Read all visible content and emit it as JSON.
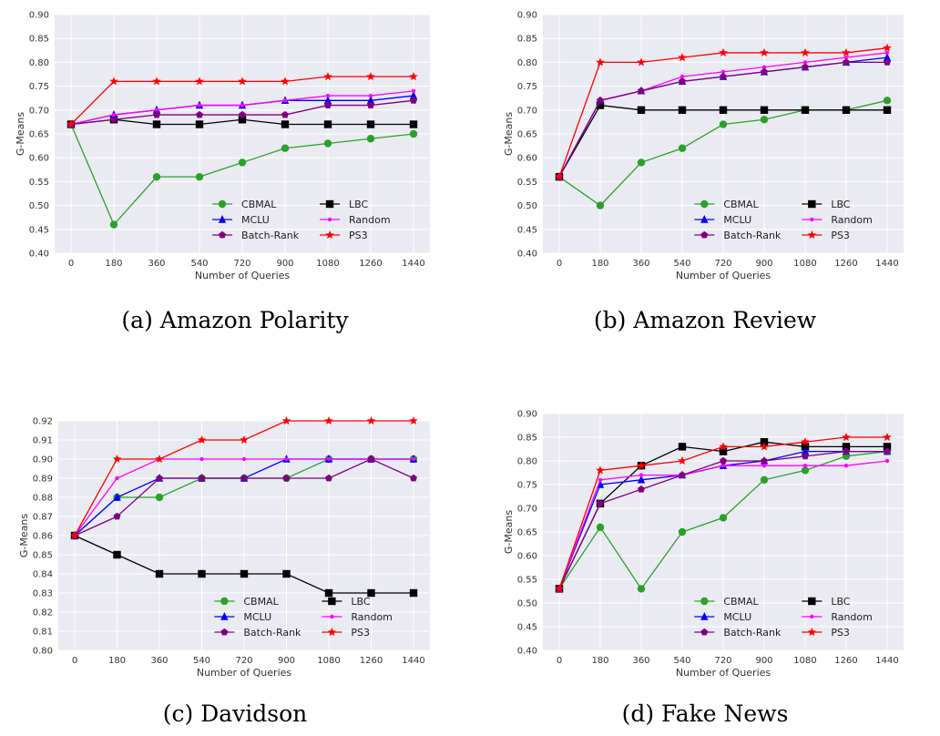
{
  "colors": {
    "CBMAL": "#2ca02c",
    "LBC": "#000000",
    "MCLU": "#0000ff",
    "Random": "#ff00ff",
    "Batch-Rank": "#800080",
    "PS3": "#ff0000",
    "plot_bg": "#eaeaf2",
    "grid": "#ffffff"
  },
  "chart_data": [
    {
      "type": "line",
      "caption": "(a) Amazon Polarity",
      "xlabel": "Number of Queries",
      "ylabel": "G-Means",
      "x": [
        0,
        180,
        360,
        540,
        720,
        900,
        1080,
        1260,
        1440
      ],
      "ylim": [
        0.4,
        0.9
      ],
      "yticks": [
        "0.40",
        "0.45",
        "0.50",
        "0.55",
        "0.60",
        "0.65",
        "0.70",
        "0.75",
        "0.80",
        "0.85",
        "0.90"
      ],
      "legend": "lower-right",
      "grid": true,
      "series": [
        {
          "name": "CBMAL",
          "marker": "circle",
          "values": [
            0.67,
            0.46,
            0.56,
            0.56,
            0.59,
            0.62,
            0.63,
            0.64,
            0.65
          ]
        },
        {
          "name": "MCLU",
          "marker": "triangle",
          "values": [
            0.67,
            0.69,
            0.7,
            0.71,
            0.71,
            0.72,
            0.72,
            0.72,
            0.73
          ]
        },
        {
          "name": "Batch-Rank",
          "marker": "pentagon",
          "values": [
            0.67,
            0.68,
            0.69,
            0.69,
            0.69,
            0.69,
            0.71,
            0.71,
            0.72
          ]
        },
        {
          "name": "LBC",
          "marker": "square",
          "values": [
            0.67,
            0.68,
            0.67,
            0.67,
            0.68,
            0.67,
            0.67,
            0.67,
            0.67
          ]
        },
        {
          "name": "Random",
          "marker": "dot",
          "values": [
            0.67,
            0.69,
            0.7,
            0.71,
            0.71,
            0.72,
            0.73,
            0.73,
            0.74
          ]
        },
        {
          "name": "PS3",
          "marker": "star",
          "values": [
            0.67,
            0.76,
            0.76,
            0.76,
            0.76,
            0.76,
            0.77,
            0.77,
            0.77
          ]
        }
      ]
    },
    {
      "type": "line",
      "caption": "(b) Amazon Review",
      "xlabel": "Number of Queries",
      "ylabel": "G-Means",
      "x": [
        0,
        180,
        360,
        540,
        720,
        900,
        1080,
        1260,
        1440
      ],
      "ylim": [
        0.4,
        0.9
      ],
      "yticks": [
        "0.40",
        "0.45",
        "0.50",
        "0.55",
        "0.60",
        "0.65",
        "0.70",
        "0.75",
        "0.80",
        "0.85",
        "0.90"
      ],
      "legend": "lower-right",
      "grid": true,
      "series": [
        {
          "name": "CBMAL",
          "marker": "circle",
          "values": [
            0.56,
            0.5,
            0.59,
            0.62,
            0.67,
            0.68,
            0.7,
            0.7,
            0.72
          ]
        },
        {
          "name": "MCLU",
          "marker": "triangle",
          "values": [
            0.56,
            0.72,
            0.74,
            0.76,
            0.77,
            0.78,
            0.79,
            0.8,
            0.81
          ]
        },
        {
          "name": "Batch-Rank",
          "marker": "pentagon",
          "values": [
            0.56,
            0.72,
            0.74,
            0.76,
            0.77,
            0.78,
            0.79,
            0.8,
            0.8
          ]
        },
        {
          "name": "LBC",
          "marker": "square",
          "values": [
            0.56,
            0.71,
            0.7,
            0.7,
            0.7,
            0.7,
            0.7,
            0.7,
            0.7
          ]
        },
        {
          "name": "Random",
          "marker": "dot",
          "values": [
            0.56,
            0.72,
            0.74,
            0.77,
            0.78,
            0.79,
            0.8,
            0.81,
            0.82
          ]
        },
        {
          "name": "PS3",
          "marker": "star",
          "values": [
            0.56,
            0.8,
            0.8,
            0.81,
            0.82,
            0.82,
            0.82,
            0.82,
            0.83
          ]
        }
      ]
    },
    {
      "type": "line",
      "caption": "(c) Davidson",
      "xlabel": "Number of Queries",
      "ylabel": "G-Means",
      "x": [
        0,
        180,
        360,
        540,
        720,
        900,
        1080,
        1260,
        1440
      ],
      "ylim": [
        0.8,
        0.92
      ],
      "yticks": [
        "0.80",
        "0.81",
        "0.82",
        "0.83",
        "0.84",
        "0.85",
        "0.86",
        "0.87",
        "0.88",
        "0.89",
        "0.90",
        "0.91",
        "0.92"
      ],
      "legend": "lower-right",
      "grid": true,
      "series": [
        {
          "name": "CBMAL",
          "marker": "circle",
          "values": [
            0.86,
            0.88,
            0.88,
            0.89,
            0.89,
            0.89,
            0.9,
            0.9,
            0.9
          ]
        },
        {
          "name": "MCLU",
          "marker": "triangle",
          "values": [
            0.86,
            0.88,
            0.89,
            0.89,
            0.89,
            0.9,
            0.9,
            0.9,
            0.9
          ]
        },
        {
          "name": "Batch-Rank",
          "marker": "pentagon",
          "values": [
            0.86,
            0.87,
            0.89,
            0.89,
            0.89,
            0.89,
            0.89,
            0.9,
            0.89
          ]
        },
        {
          "name": "LBC",
          "marker": "square",
          "values": [
            0.86,
            0.85,
            0.84,
            0.84,
            0.84,
            0.84,
            0.83,
            0.83,
            0.83
          ]
        },
        {
          "name": "Random",
          "marker": "dot",
          "values": [
            0.86,
            0.89,
            0.9,
            0.9,
            0.9,
            0.9,
            0.9,
            0.9,
            0.9
          ]
        },
        {
          "name": "PS3",
          "marker": "star",
          "values": [
            0.86,
            0.9,
            0.9,
            0.91,
            0.91,
            0.92,
            0.92,
            0.92,
            0.92
          ]
        }
      ]
    },
    {
      "type": "line",
      "caption": "(d) Fake News",
      "xlabel": "Number of Queries",
      "ylabel": "G-Means",
      "x": [
        0,
        180,
        360,
        540,
        720,
        900,
        1080,
        1260,
        1440
      ],
      "ylim": [
        0.4,
        0.9
      ],
      "yticks": [
        "0.40",
        "0.45",
        "0.50",
        "0.55",
        "0.60",
        "0.65",
        "0.70",
        "0.75",
        "0.80",
        "0.85",
        "0.90"
      ],
      "legend": "lower-right",
      "grid": true,
      "series": [
        {
          "name": "CBMAL",
          "marker": "circle",
          "values": [
            0.53,
            0.66,
            0.53,
            0.65,
            0.68,
            0.76,
            0.78,
            0.81,
            0.82
          ]
        },
        {
          "name": "MCLU",
          "marker": "triangle",
          "values": [
            0.53,
            0.75,
            0.76,
            0.77,
            0.79,
            0.8,
            0.82,
            0.82,
            0.82
          ]
        },
        {
          "name": "Batch-Rank",
          "marker": "pentagon",
          "values": [
            0.53,
            0.71,
            0.74,
            0.77,
            0.8,
            0.8,
            0.81,
            0.82,
            0.82
          ]
        },
        {
          "name": "LBC",
          "marker": "square",
          "values": [
            0.53,
            0.71,
            0.79,
            0.83,
            0.82,
            0.84,
            0.83,
            0.83,
            0.83
          ]
        },
        {
          "name": "Random",
          "marker": "dot",
          "values": [
            0.53,
            0.76,
            0.77,
            0.77,
            0.79,
            0.79,
            0.79,
            0.79,
            0.8
          ]
        },
        {
          "name": "PS3",
          "marker": "star",
          "values": [
            0.53,
            0.78,
            0.79,
            0.8,
            0.83,
            0.83,
            0.84,
            0.85,
            0.85
          ]
        }
      ]
    }
  ]
}
